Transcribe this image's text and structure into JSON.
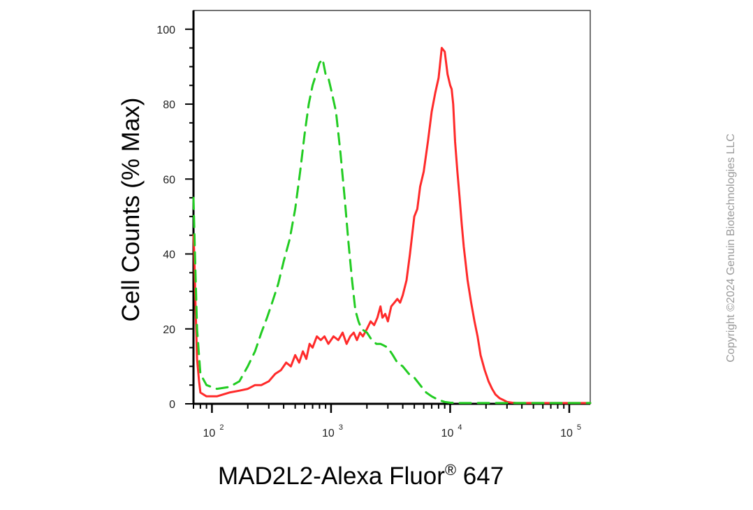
{
  "chart_data": {
    "type": "line",
    "xlabel": "MAD2L2-Alexa Fluor",
    "xlabel_superscript": "®",
    "xlabel_suffix": " 647",
    "ylabel": "Cell Counts (% Max)",
    "x_scale": "log",
    "xlim": [
      70,
      150000
    ],
    "ylim": [
      0,
      105
    ],
    "y_ticks": [
      "0",
      "20",
      "40",
      "60",
      "80",
      "100"
    ],
    "x_ticks": [
      {
        "base": "10",
        "exp": "2"
      },
      {
        "base": "10",
        "exp": "3"
      },
      {
        "base": "10",
        "exp": "4"
      },
      {
        "base": "10",
        "exp": "5"
      }
    ],
    "grid": false,
    "series": [
      {
        "color": "#ff2a2a",
        "style": "solid",
        "x": [
          70,
          71,
          73,
          75,
          78,
          80,
          90,
          110,
          140,
          170,
          200,
          230,
          260,
          300,
          340,
          380,
          420,
          460,
          500,
          540,
          580,
          620,
          660,
          700,
          760,
          820,
          880,
          950,
          1050,
          1150,
          1250,
          1350,
          1450,
          1550,
          1650,
          1750,
          1850,
          2000,
          2150,
          2300,
          2450,
          2600,
          2700,
          2850,
          3000,
          3200,
          3400,
          3600,
          3800,
          4000,
          4300,
          4600,
          5000,
          5300,
          5600,
          6000,
          6500,
          7000,
          7500,
          8000,
          8500,
          9000,
          9500,
          10000,
          10300,
          10600,
          11000,
          11500,
          12000,
          12500,
          13000,
          14000,
          15000,
          16000,
          17000,
          18000,
          19500,
          21000,
          22500,
          24000,
          26000,
          28000,
          30000,
          33000,
          36000,
          40000,
          45000,
          50000,
          60000,
          80000,
          100000,
          150000
        ],
        "y": [
          45,
          40,
          25,
          12,
          6,
          3,
          2,
          2,
          3,
          3.5,
          4,
          5,
          5,
          6,
          8,
          9,
          11,
          10,
          13,
          11,
          14,
          12,
          16,
          15,
          18,
          17,
          18,
          16,
          18,
          17,
          19,
          16,
          18,
          19,
          17,
          19,
          18,
          20,
          22,
          21,
          23,
          26,
          23,
          24,
          22,
          26,
          27,
          28,
          27,
          29,
          33,
          40,
          50,
          52,
          58,
          62,
          70,
          78,
          83,
          87,
          95,
          94,
          88,
          85,
          84,
          80,
          70,
          62,
          55,
          48,
          42,
          33,
          27,
          22,
          18,
          13,
          9,
          6,
          4,
          2.5,
          1.5,
          1,
          0.5,
          0.3,
          0.2,
          0.2,
          0.2,
          0.2,
          0.2,
          0.2,
          0.2,
          0.2
        ]
      },
      {
        "color": "#22cc22",
        "style": "dashed",
        "x": [
          70,
          72,
          75,
          80,
          90,
          110,
          140,
          170,
          200,
          230,
          260,
          290,
          320,
          360,
          400,
          450,
          500,
          550,
          600,
          650,
          700,
          750,
          800,
          850,
          900,
          950,
          1000,
          1100,
          1200,
          1300,
          1400,
          1500,
          1600,
          1700,
          1800,
          2000,
          2200,
          2400,
          2600,
          2800,
          3000,
          3300,
          3600,
          4000,
          4500,
          5000,
          5600,
          6300,
          7000,
          8000,
          9000,
          10000,
          12000,
          15000,
          20000,
          30000,
          50000,
          150000
        ],
        "y": [
          55,
          40,
          20,
          8,
          5,
          4,
          4.5,
          6,
          10,
          14,
          19,
          23,
          27,
          32,
          38,
          44,
          52,
          62,
          72,
          80,
          85,
          88,
          91,
          92,
          88,
          87,
          84,
          78,
          67,
          55,
          43,
          33,
          25,
          22,
          20,
          19,
          17,
          16,
          16,
          15.5,
          15,
          13,
          11,
          10,
          8,
          7,
          5,
          3,
          2,
          1,
          0.5,
          0.3,
          0.2,
          0.2,
          0.2,
          0.2,
          0.2,
          0.2
        ]
      }
    ]
  },
  "watermark": "Copyright ©2024 Genuin Biotechnologies LLC"
}
